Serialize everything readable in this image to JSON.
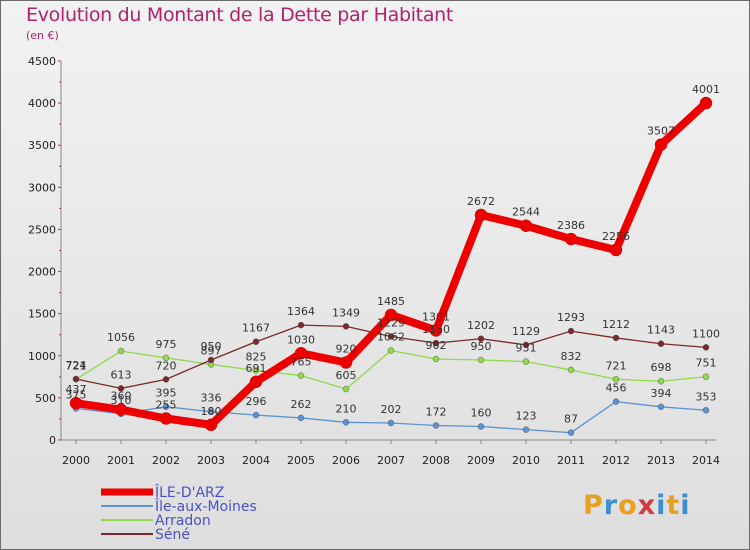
{
  "title": "Evolution du Montant de la Dette par Habitant",
  "unit": "(en €)",
  "logo": {
    "text": "Proxiti",
    "colors": [
      "#e8a020",
      "#3a8fd0",
      "#e8a020",
      "#d03a3a",
      "#3a8fd0",
      "#e8a020",
      "#3a8fd0"
    ]
  },
  "chart_data": {
    "type": "line",
    "title": "Evolution du Montant de la Dette par Habitant",
    "ylabel": "(en €)",
    "ylim": [
      0,
      4500
    ],
    "yticks": [
      0,
      500,
      1000,
      1500,
      2000,
      2500,
      3000,
      3500,
      4000,
      4500
    ],
    "grid": false,
    "legend": "bottom-left",
    "x": [
      "2000",
      "2001",
      "2002",
      "2003",
      "2004",
      "2005",
      "2006",
      "2007",
      "2008",
      "2009",
      "2010",
      "2011",
      "2012",
      "2013",
      "2014"
    ],
    "series": [
      {
        "name": "ÎLE-D'ARZ",
        "color": "#ee0000",
        "values": [
          437,
          360,
          255,
          180,
          691,
          1030,
          920,
          1485,
          1301,
          2672,
          2544,
          2386,
          2256,
          3507,
          4001
        ]
      },
      {
        "name": "Île-aux-Moines",
        "color": "#5b93d3",
        "values": [
          375,
          310,
          395,
          336,
          296,
          262,
          210,
          202,
          172,
          160,
          123,
          87,
          456,
          394,
          353
        ]
      },
      {
        "name": "Arradon",
        "color": "#8fd94a",
        "values": [
          721,
          1056,
          975,
          897,
          825,
          765,
          605,
          1062,
          962,
          950,
          931,
          832,
          721,
          698,
          751
        ]
      },
      {
        "name": "Séné",
        "color": "#7a2a2a",
        "values": [
          724,
          613,
          720,
          950,
          1167,
          1364,
          1349,
          1229,
          1150,
          1202,
          1129,
          1293,
          1212,
          1143,
          1100
        ]
      }
    ]
  }
}
